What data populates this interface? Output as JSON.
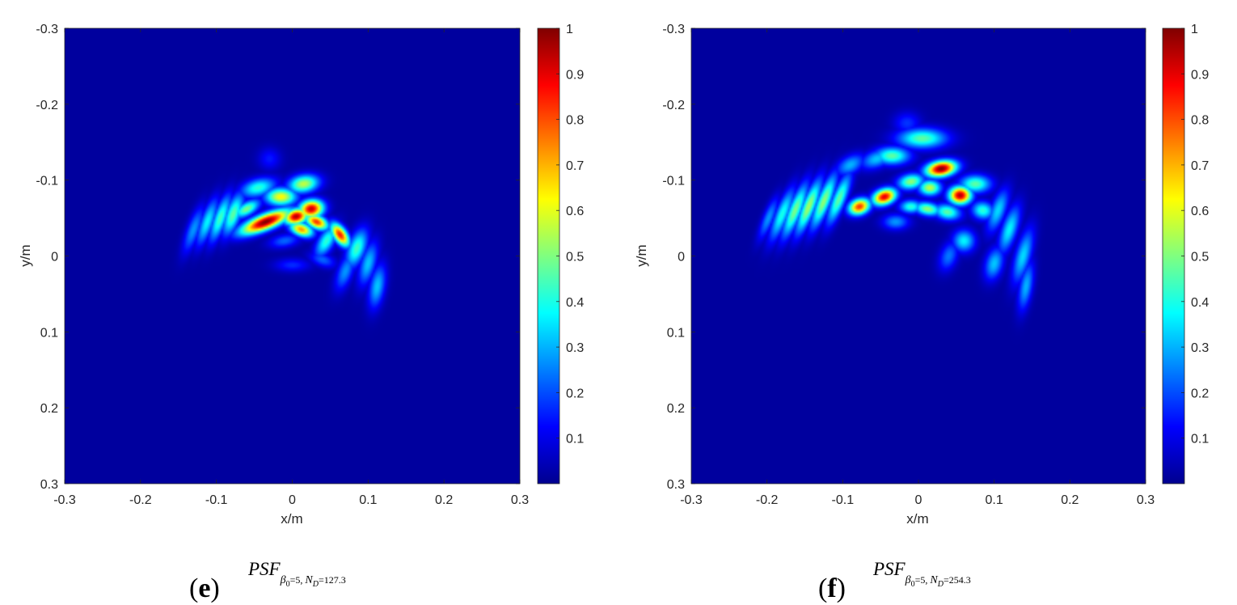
{
  "chart_data": [
    {
      "type": "heatmap",
      "panel": "e",
      "caption": {
        "paren_open": "(",
        "letter": "e",
        "paren_close": ")",
        "formula_main": "PSF",
        "formula_sub": "β₀=5, N_D=127.3",
        "sub_parts": {
          "beta": "β",
          "beta_sub": "0",
          "beta_val": "=5, ",
          "n": "N",
          "n_sub": "D",
          "n_val": "=127.3"
        }
      },
      "xlabel": "x/m",
      "ylabel": "y/m",
      "xlim": [
        -0.3,
        0.3
      ],
      "ylim": [
        -0.3,
        0.3
      ],
      "y_reversed": true,
      "xticks": [
        "-0.3",
        "-0.2",
        "-0.1",
        "0",
        "0.1",
        "0.2",
        "0.3"
      ],
      "yticks": [
        "-0.3",
        "-0.2",
        "-0.1",
        "0",
        "0.1",
        "0.2",
        "0.3"
      ],
      "colorbar": {
        "range": [
          0,
          1
        ],
        "ticks": [
          "0.1",
          "0.2",
          "0.3",
          "0.4",
          "0.5",
          "0.6",
          "0.7",
          "0.8",
          "0.9",
          "1"
        ],
        "colormap": "jet"
      },
      "background_value": 0,
      "peaks": [
        {
          "x": -0.035,
          "y": -0.045,
          "value": 1.0,
          "sx": 0.024,
          "sy": 0.007,
          "angle": -22
        },
        {
          "x": 0.005,
          "y": -0.052,
          "value": 0.95,
          "sx": 0.011,
          "sy": 0.007,
          "angle": -15
        },
        {
          "x": 0.025,
          "y": -0.062,
          "value": 0.93,
          "sx": 0.011,
          "sy": 0.008,
          "angle": -10
        },
        {
          "x": 0.032,
          "y": -0.045,
          "value": 0.82,
          "sx": 0.011,
          "sy": 0.006,
          "angle": 25
        },
        {
          "x": 0.012,
          "y": -0.035,
          "value": 0.72,
          "sx": 0.011,
          "sy": 0.006,
          "angle": 20
        },
        {
          "x": 0.063,
          "y": -0.028,
          "value": 0.85,
          "sx": 0.012,
          "sy": 0.006,
          "angle": 55
        },
        {
          "x": -0.015,
          "y": -0.078,
          "value": 0.62,
          "sx": 0.014,
          "sy": 0.008,
          "angle": 0
        },
        {
          "x": 0.015,
          "y": -0.095,
          "value": 0.55,
          "sx": 0.014,
          "sy": 0.008,
          "angle": -10
        },
        {
          "x": -0.045,
          "y": -0.09,
          "value": 0.4,
          "sx": 0.016,
          "sy": 0.008,
          "angle": -15
        },
        {
          "x": -0.06,
          "y": -0.062,
          "value": 0.48,
          "sx": 0.013,
          "sy": 0.006,
          "angle": -30
        },
        {
          "x": -0.078,
          "y": -0.055,
          "value": 0.45,
          "sx": 0.007,
          "sy": 0.02,
          "angle": 20
        },
        {
          "x": -0.095,
          "y": -0.05,
          "value": 0.42,
          "sx": 0.006,
          "sy": 0.022,
          "angle": 20
        },
        {
          "x": -0.112,
          "y": -0.045,
          "value": 0.35,
          "sx": 0.006,
          "sy": 0.022,
          "angle": 20
        },
        {
          "x": -0.13,
          "y": -0.035,
          "value": 0.25,
          "sx": 0.006,
          "sy": 0.022,
          "angle": 20
        },
        {
          "x": 0.045,
          "y": -0.02,
          "value": 0.4,
          "sx": 0.007,
          "sy": 0.016,
          "angle": 30
        },
        {
          "x": 0.085,
          "y": -0.01,
          "value": 0.42,
          "sx": 0.008,
          "sy": 0.018,
          "angle": 20
        },
        {
          "x": 0.1,
          "y": 0.01,
          "value": 0.3,
          "sx": 0.007,
          "sy": 0.02,
          "angle": 15
        },
        {
          "x": 0.112,
          "y": 0.04,
          "value": 0.3,
          "sx": 0.007,
          "sy": 0.02,
          "angle": 10
        },
        {
          "x": 0.07,
          "y": 0.02,
          "value": 0.25,
          "sx": 0.007,
          "sy": 0.018,
          "angle": 20
        },
        {
          "x": 0.04,
          "y": 0.005,
          "value": 0.2,
          "sx": 0.012,
          "sy": 0.006,
          "angle": 20
        },
        {
          "x": -0.01,
          "y": -0.02,
          "value": 0.2,
          "sx": 0.014,
          "sy": 0.006,
          "angle": -10
        },
        {
          "x": 0.0,
          "y": 0.012,
          "value": 0.14,
          "sx": 0.016,
          "sy": 0.006,
          "angle": 0
        },
        {
          "x": -0.03,
          "y": -0.128,
          "value": 0.12,
          "sx": 0.01,
          "sy": 0.01,
          "angle": 0
        }
      ]
    },
    {
      "type": "heatmap",
      "panel": "f",
      "caption": {
        "paren_open": "(",
        "letter": "f",
        "paren_close": ")",
        "formula_main": "PSF",
        "formula_sub": "β₀=5, N_D=254.3",
        "sub_parts": {
          "beta": "β",
          "beta_sub": "0",
          "beta_val": "=5, ",
          "n": "N",
          "n_sub": "D",
          "n_val": "=254.3"
        }
      },
      "xlabel": "x/m",
      "ylabel": "y/m",
      "xlim": [
        -0.3,
        0.3
      ],
      "ylim": [
        -0.3,
        0.3
      ],
      "y_reversed": true,
      "xticks": [
        "-0.3",
        "-0.2",
        "-0.1",
        "0",
        "0.1",
        "0.2",
        "0.3"
      ],
      "yticks": [
        "-0.3",
        "-0.2",
        "-0.1",
        "0",
        "0.1",
        "0.2",
        "0.3"
      ],
      "colorbar": {
        "range": [
          0,
          1
        ],
        "ticks": [
          "0.1",
          "0.2",
          "0.3",
          "0.4",
          "0.5",
          "0.6",
          "0.7",
          "0.8",
          "0.9",
          "1"
        ],
        "colormap": "jet"
      },
      "background_value": 0,
      "peaks": [
        {
          "x": 0.03,
          "y": -0.115,
          "value": 1.0,
          "sx": 0.014,
          "sy": 0.007,
          "angle": -10
        },
        {
          "x": 0.055,
          "y": -0.08,
          "value": 0.95,
          "sx": 0.01,
          "sy": 0.008,
          "angle": 0
        },
        {
          "x": -0.045,
          "y": -0.078,
          "value": 0.9,
          "sx": 0.011,
          "sy": 0.007,
          "angle": -20
        },
        {
          "x": -0.078,
          "y": -0.065,
          "value": 0.82,
          "sx": 0.01,
          "sy": 0.007,
          "angle": -20
        },
        {
          "x": 0.005,
          "y": -0.155,
          "value": 0.45,
          "sx": 0.022,
          "sy": 0.009,
          "angle": 0
        },
        {
          "x": -0.035,
          "y": -0.132,
          "value": 0.45,
          "sx": 0.016,
          "sy": 0.008,
          "angle": 0
        },
        {
          "x": -0.01,
          "y": -0.098,
          "value": 0.5,
          "sx": 0.012,
          "sy": 0.007,
          "angle": -10
        },
        {
          "x": 0.015,
          "y": -0.09,
          "value": 0.55,
          "sx": 0.01,
          "sy": 0.007,
          "angle": 0
        },
        {
          "x": 0.012,
          "y": -0.062,
          "value": 0.5,
          "sx": 0.012,
          "sy": 0.006,
          "angle": 10
        },
        {
          "x": 0.038,
          "y": -0.058,
          "value": 0.45,
          "sx": 0.012,
          "sy": 0.007,
          "angle": 10
        },
        {
          "x": 0.075,
          "y": -0.095,
          "value": 0.45,
          "sx": 0.014,
          "sy": 0.008,
          "angle": 0
        },
        {
          "x": -0.01,
          "y": -0.065,
          "value": 0.4,
          "sx": 0.01,
          "sy": 0.006,
          "angle": 0
        },
        {
          "x": 0.085,
          "y": -0.06,
          "value": 0.4,
          "sx": 0.01,
          "sy": 0.008,
          "angle": 10
        },
        {
          "x": -0.105,
          "y": -0.075,
          "value": 0.45,
          "sx": 0.006,
          "sy": 0.024,
          "angle": 22
        },
        {
          "x": -0.125,
          "y": -0.072,
          "value": 0.5,
          "sx": 0.006,
          "sy": 0.026,
          "angle": 22
        },
        {
          "x": -0.145,
          "y": -0.065,
          "value": 0.52,
          "sx": 0.006,
          "sy": 0.026,
          "angle": 22
        },
        {
          "x": -0.163,
          "y": -0.06,
          "value": 0.48,
          "sx": 0.006,
          "sy": 0.026,
          "angle": 22
        },
        {
          "x": -0.18,
          "y": -0.055,
          "value": 0.38,
          "sx": 0.006,
          "sy": 0.025,
          "angle": 22
        },
        {
          "x": -0.198,
          "y": -0.05,
          "value": 0.25,
          "sx": 0.005,
          "sy": 0.02,
          "angle": 22
        },
        {
          "x": -0.055,
          "y": -0.128,
          "value": 0.3,
          "sx": 0.015,
          "sy": 0.008,
          "angle": -20
        },
        {
          "x": -0.09,
          "y": -0.12,
          "value": 0.28,
          "sx": 0.014,
          "sy": 0.008,
          "angle": -30
        },
        {
          "x": 0.105,
          "y": -0.06,
          "value": 0.32,
          "sx": 0.007,
          "sy": 0.02,
          "angle": 20
        },
        {
          "x": 0.12,
          "y": -0.035,
          "value": 0.35,
          "sx": 0.007,
          "sy": 0.022,
          "angle": 18
        },
        {
          "x": 0.138,
          "y": 0.0,
          "value": 0.32,
          "sx": 0.007,
          "sy": 0.025,
          "angle": 15
        },
        {
          "x": 0.142,
          "y": 0.04,
          "value": 0.28,
          "sx": 0.006,
          "sy": 0.022,
          "angle": 10
        },
        {
          "x": 0.06,
          "y": -0.02,
          "value": 0.35,
          "sx": 0.01,
          "sy": 0.01,
          "angle": 0
        },
        {
          "x": 0.1,
          "y": 0.01,
          "value": 0.3,
          "sx": 0.008,
          "sy": 0.015,
          "angle": 15
        },
        {
          "x": 0.04,
          "y": 0.0,
          "value": 0.22,
          "sx": 0.008,
          "sy": 0.014,
          "angle": 20
        },
        {
          "x": -0.03,
          "y": -0.045,
          "value": 0.25,
          "sx": 0.012,
          "sy": 0.007,
          "angle": 0
        },
        {
          "x": -0.015,
          "y": -0.175,
          "value": 0.15,
          "sx": 0.012,
          "sy": 0.01,
          "angle": 0
        }
      ]
    }
  ]
}
